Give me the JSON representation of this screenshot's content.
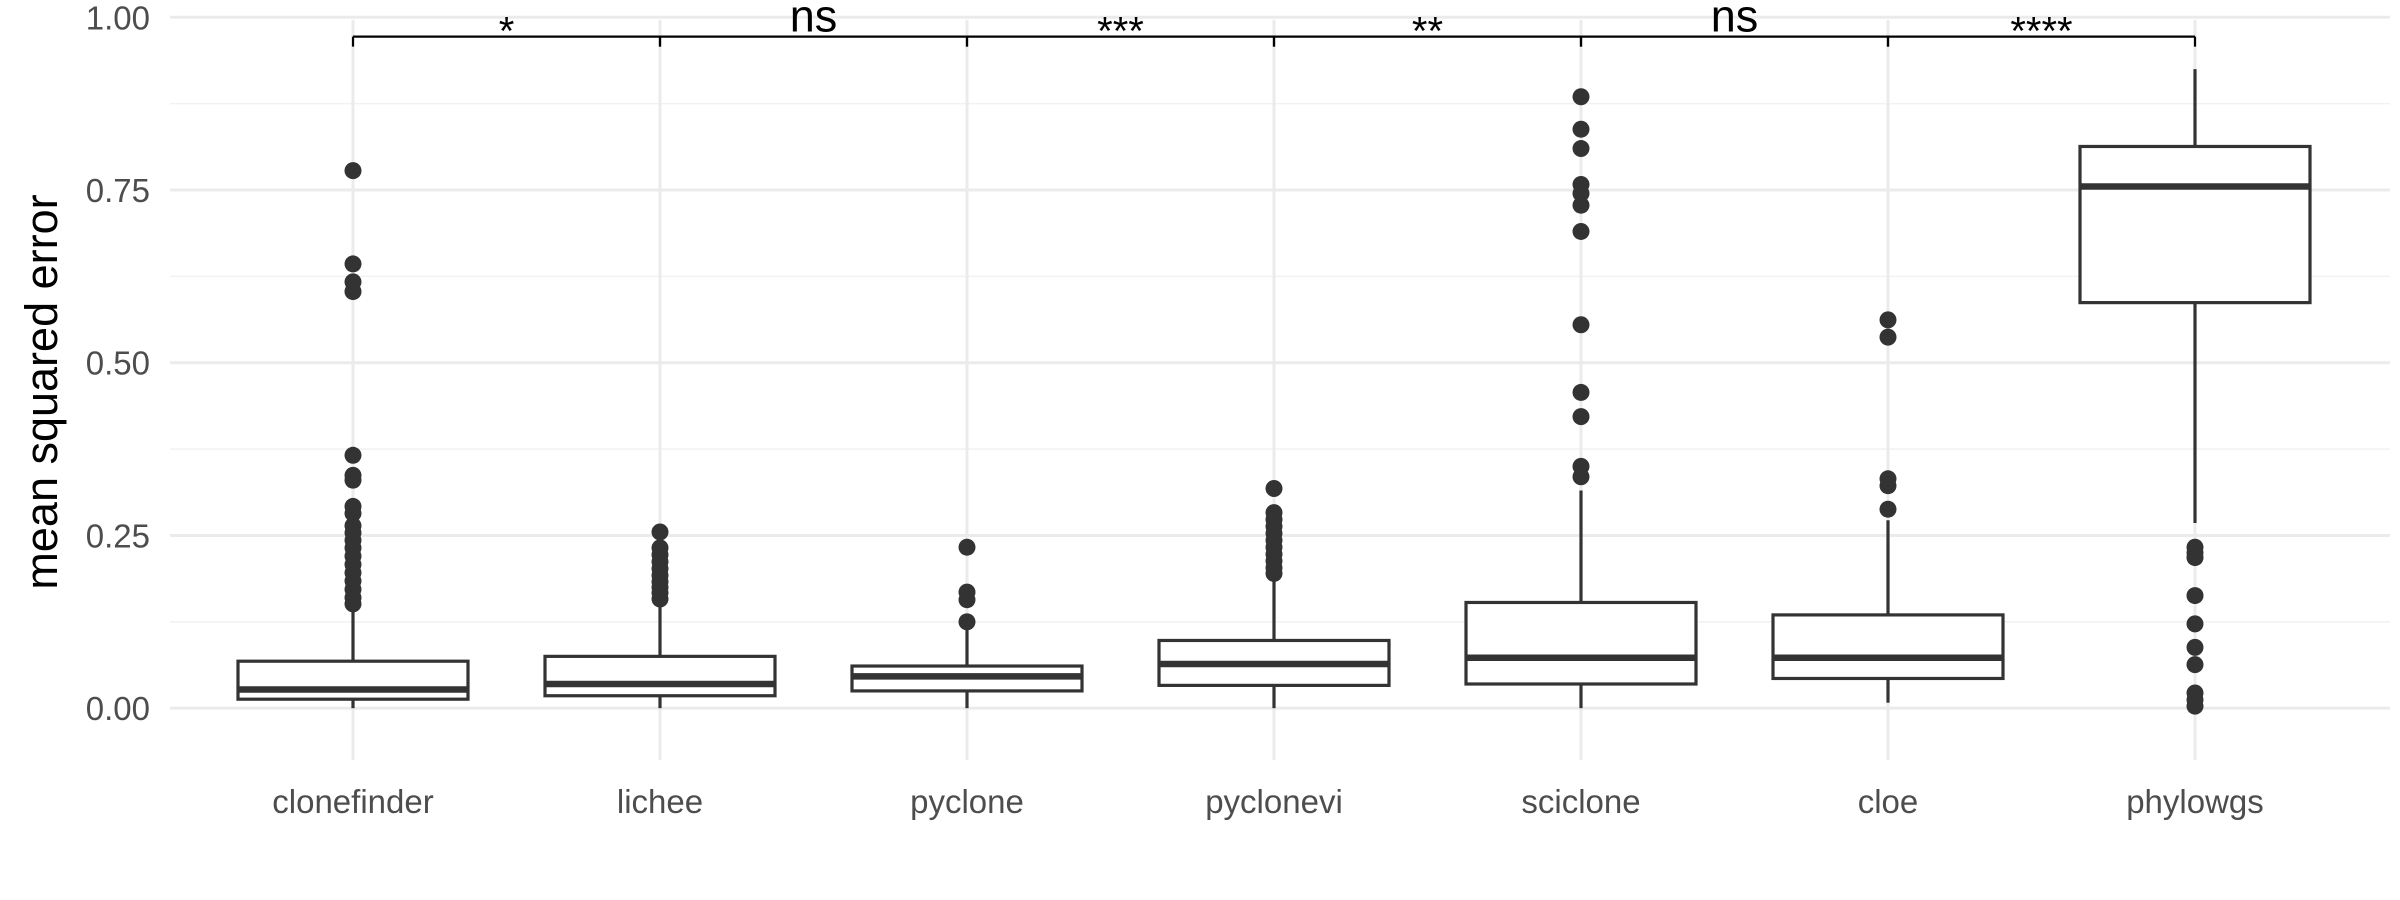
{
  "chart_data": {
    "type": "boxplot",
    "ylabel": "mean squared error",
    "xlabel": "",
    "ylim": [
      -0.075,
      1.025
    ],
    "yticks": [
      0.0,
      0.25,
      0.5,
      0.75,
      1.0
    ],
    "ytick_labels": [
      "0.00",
      "0.25",
      "0.50",
      "0.75",
      "1.00"
    ],
    "grid": true,
    "categories": [
      "clonefinder",
      "lichee",
      "pyclone",
      "pyclonevi",
      "sciclone",
      "cloe",
      "phylowgs"
    ],
    "boxes": [
      {
        "name": "clonefinder",
        "whisker_low": 0.0,
        "q1": 0.013,
        "median": 0.027,
        "q3": 0.068,
        "whisker_high": 0.145,
        "outliers": [
          0.778,
          0.643,
          0.617,
          0.603,
          0.366,
          0.337,
          0.33,
          0.292,
          0.282,
          0.264,
          0.254,
          0.243,
          0.232,
          0.22,
          0.208,
          0.196,
          0.184,
          0.172,
          0.16,
          0.151
        ]
      },
      {
        "name": "lichee",
        "whisker_low": 0.0,
        "q1": 0.018,
        "median": 0.035,
        "q3": 0.075,
        "whisker_high": 0.15,
        "outliers": [
          0.255,
          0.232,
          0.222,
          0.212,
          0.202,
          0.192,
          0.183,
          0.175,
          0.167,
          0.158
        ]
      },
      {
        "name": "pyclone",
        "whisker_low": 0.0,
        "q1": 0.025,
        "median": 0.046,
        "q3": 0.061,
        "whisker_high": 0.115,
        "outliers": [
          0.233,
          0.168,
          0.157,
          0.125
        ]
      },
      {
        "name": "pyclonevi",
        "whisker_low": 0.0,
        "q1": 0.033,
        "median": 0.064,
        "q3": 0.098,
        "whisker_high": 0.19,
        "outliers": [
          0.318,
          0.283,
          0.273,
          0.263,
          0.253,
          0.243,
          0.233,
          0.223,
          0.213,
          0.203,
          0.195
        ]
      },
      {
        "name": "sciclone",
        "whisker_low": 0.0,
        "q1": 0.035,
        "median": 0.073,
        "q3": 0.153,
        "whisker_high": 0.315,
        "outliers": [
          0.885,
          0.838,
          0.81,
          0.758,
          0.745,
          0.728,
          0.69,
          0.555,
          0.457,
          0.422,
          0.35,
          0.335
        ]
      },
      {
        "name": "cloe",
        "whisker_low": 0.008,
        "q1": 0.043,
        "median": 0.073,
        "q3": 0.135,
        "whisker_high": 0.272,
        "outliers": [
          0.562,
          0.537,
          0.332,
          0.322,
          0.288
        ]
      },
      {
        "name": "phylowgs",
        "whisker_low": 0.268,
        "q1": 0.587,
        "median": 0.755,
        "q3": 0.813,
        "whisker_high": 0.925,
        "outliers": [
          0.233,
          0.225,
          0.218,
          0.163,
          0.122,
          0.088,
          0.063,
          0.022,
          0.012,
          0.003
        ]
      }
    ],
    "comparisons": [
      {
        "from": "clonefinder",
        "to": "lichee",
        "label": "*"
      },
      {
        "from": "lichee",
        "to": "pyclone",
        "label": "ns"
      },
      {
        "from": "pyclone",
        "to": "pyclonevi",
        "label": "***"
      },
      {
        "from": "pyclonevi",
        "to": "sciclone",
        "label": "**"
      },
      {
        "from": "sciclone",
        "to": "cloe",
        "label": "ns"
      },
      {
        "from": "cloe",
        "to": "phylowgs",
        "label": "****"
      }
    ],
    "comparison_bar_y": 0.972,
    "colors": {
      "box_stroke": "#333333",
      "grid_major": "#ebebeb",
      "grid_minor": "#f2f2f2",
      "tick_text": "#4d4d4d",
      "point": "#333333"
    }
  }
}
